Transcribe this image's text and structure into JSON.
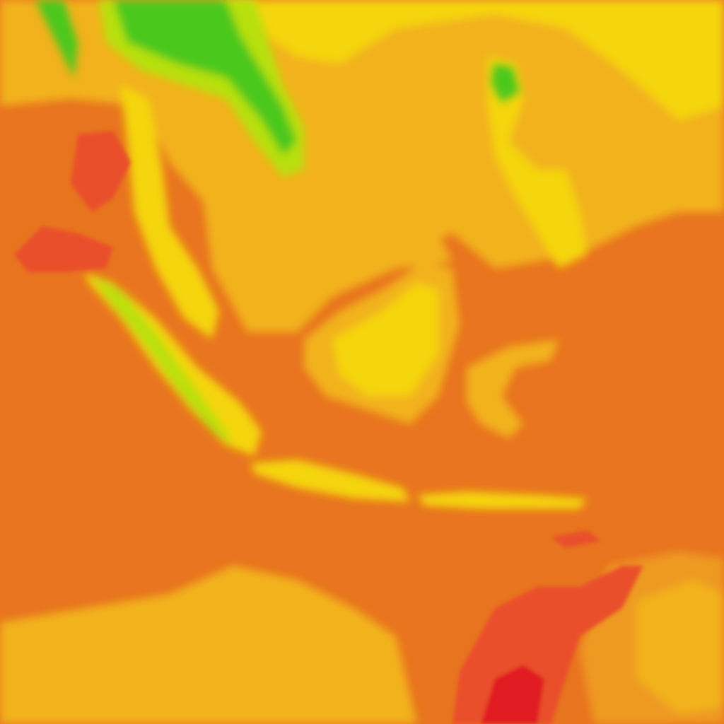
{
  "map": {
    "type": "heatmap",
    "colors": {
      "background": "#e8741f",
      "warm_orange": "#ee9a22",
      "amber": "#f2b21c",
      "yellow": "#f5d510",
      "bright_yellow": "#fbe800",
      "light_green": "#b8e010",
      "green": "#4cc81a",
      "red_orange": "#e9502a",
      "red": "#e01a20"
    }
  }
}
